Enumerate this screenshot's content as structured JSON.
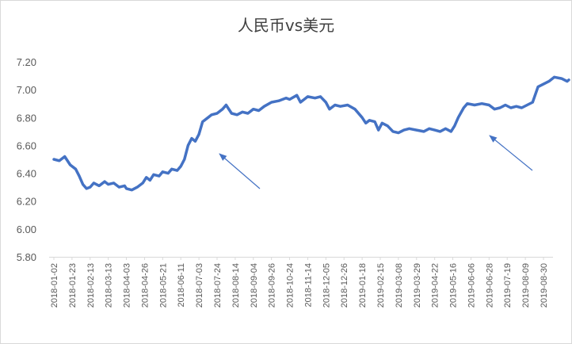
{
  "chart_data": {
    "type": "line",
    "title": "人民币vs美元",
    "xlabel": "",
    "ylabel": "",
    "ylim": [
      5.8,
      7.2
    ],
    "yticks": [
      "7.20",
      "7.00",
      "6.80",
      "6.60",
      "6.40",
      "6.20",
      "6.00",
      "5.80"
    ],
    "xticks": [
      "2018-01-02",
      "2018-01-23",
      "2018-02-13",
      "2018-03-13",
      "2018-04-03",
      "2018-04-26",
      "2018-05-21",
      "2018-06-11",
      "2018-07-03",
      "2018-07-24",
      "2018-08-14",
      "2018-09-04",
      "2018-09-26",
      "2018-10-24",
      "2018-11-14",
      "2018-12-05",
      "2018-12-26",
      "2019-01-18",
      "2019-02-15",
      "2019-03-08",
      "2019-03-29",
      "2019-04-22",
      "2019-05-16",
      "2019-06-06",
      "2019-06-28",
      "2019-07-19",
      "2019-08-09",
      "2019-08-30"
    ],
    "grid": false,
    "legend": "none",
    "line_color": "#4472c4",
    "arrow_color": "#4472c4",
    "series": [
      {
        "values": [
          [
            0,
            6.5
          ],
          [
            0.3,
            6.49
          ],
          [
            0.6,
            6.52
          ],
          [
            0.9,
            6.46
          ],
          [
            1.2,
            6.43
          ],
          [
            1.4,
            6.38
          ],
          [
            1.6,
            6.32
          ],
          [
            1.8,
            6.29
          ],
          [
            2.0,
            6.3
          ],
          [
            2.2,
            6.33
          ],
          [
            2.5,
            6.31
          ],
          [
            2.8,
            6.34
          ],
          [
            3.0,
            6.32
          ],
          [
            3.3,
            6.33
          ],
          [
            3.6,
            6.3
          ],
          [
            3.9,
            6.31
          ],
          [
            4.0,
            6.29
          ],
          [
            4.3,
            6.28
          ],
          [
            4.6,
            6.3
          ],
          [
            4.9,
            6.33
          ],
          [
            5.1,
            6.37
          ],
          [
            5.3,
            6.35
          ],
          [
            5.5,
            6.39
          ],
          [
            5.8,
            6.38
          ],
          [
            6.0,
            6.41
          ],
          [
            6.3,
            6.4
          ],
          [
            6.5,
            6.43
          ],
          [
            6.8,
            6.42
          ],
          [
            7.0,
            6.45
          ],
          [
            7.2,
            6.5
          ],
          [
            7.4,
            6.6
          ],
          [
            7.6,
            6.65
          ],
          [
            7.8,
            6.63
          ],
          [
            8.0,
            6.68
          ],
          [
            8.2,
            6.77
          ],
          [
            8.5,
            6.8
          ],
          [
            8.7,
            6.82
          ],
          [
            9.0,
            6.83
          ],
          [
            9.3,
            6.86
          ],
          [
            9.5,
            6.89
          ],
          [
            9.8,
            6.83
          ],
          [
            10.1,
            6.82
          ],
          [
            10.4,
            6.84
          ],
          [
            10.7,
            6.83
          ],
          [
            11.0,
            6.86
          ],
          [
            11.3,
            6.85
          ],
          [
            11.6,
            6.88
          ],
          [
            12.0,
            6.91
          ],
          [
            12.4,
            6.92
          ],
          [
            12.8,
            6.94
          ],
          [
            13.0,
            6.93
          ],
          [
            13.4,
            6.96
          ],
          [
            13.6,
            6.91
          ],
          [
            14.0,
            6.95
          ],
          [
            14.4,
            6.94
          ],
          [
            14.7,
            6.95
          ],
          [
            15.0,
            6.91
          ],
          [
            15.2,
            6.86
          ],
          [
            15.5,
            6.89
          ],
          [
            15.8,
            6.88
          ],
          [
            16.2,
            6.89
          ],
          [
            16.6,
            6.86
          ],
          [
            17.0,
            6.8
          ],
          [
            17.2,
            6.76
          ],
          [
            17.4,
            6.78
          ],
          [
            17.7,
            6.77
          ],
          [
            17.9,
            6.71
          ],
          [
            18.1,
            6.76
          ],
          [
            18.4,
            6.74
          ],
          [
            18.7,
            6.7
          ],
          [
            19.0,
            6.69
          ],
          [
            19.3,
            6.71
          ],
          [
            19.6,
            6.72
          ],
          [
            20.0,
            6.71
          ],
          [
            20.4,
            6.7
          ],
          [
            20.7,
            6.72
          ],
          [
            21.0,
            6.71
          ],
          [
            21.3,
            6.7
          ],
          [
            21.6,
            6.72
          ],
          [
            21.9,
            6.7
          ],
          [
            22.1,
            6.74
          ],
          [
            22.3,
            6.8
          ],
          [
            22.6,
            6.87
          ],
          [
            22.8,
            6.9
          ],
          [
            23.2,
            6.89
          ],
          [
            23.6,
            6.9
          ],
          [
            24.0,
            6.89
          ],
          [
            24.3,
            6.86
          ],
          [
            24.6,
            6.87
          ],
          [
            24.9,
            6.89
          ],
          [
            25.2,
            6.87
          ],
          [
            25.5,
            6.88
          ],
          [
            25.8,
            6.87
          ],
          [
            26.1,
            6.89
          ],
          [
            26.4,
            6.91
          ],
          [
            26.7,
            7.02
          ],
          [
            27.0,
            7.04
          ],
          [
            27.3,
            7.06
          ],
          [
            27.6,
            7.09
          ],
          [
            28.0,
            7.08
          ],
          [
            28.3,
            7.06
          ],
          [
            28.4,
            7.07
          ]
        ]
      }
    ]
  }
}
